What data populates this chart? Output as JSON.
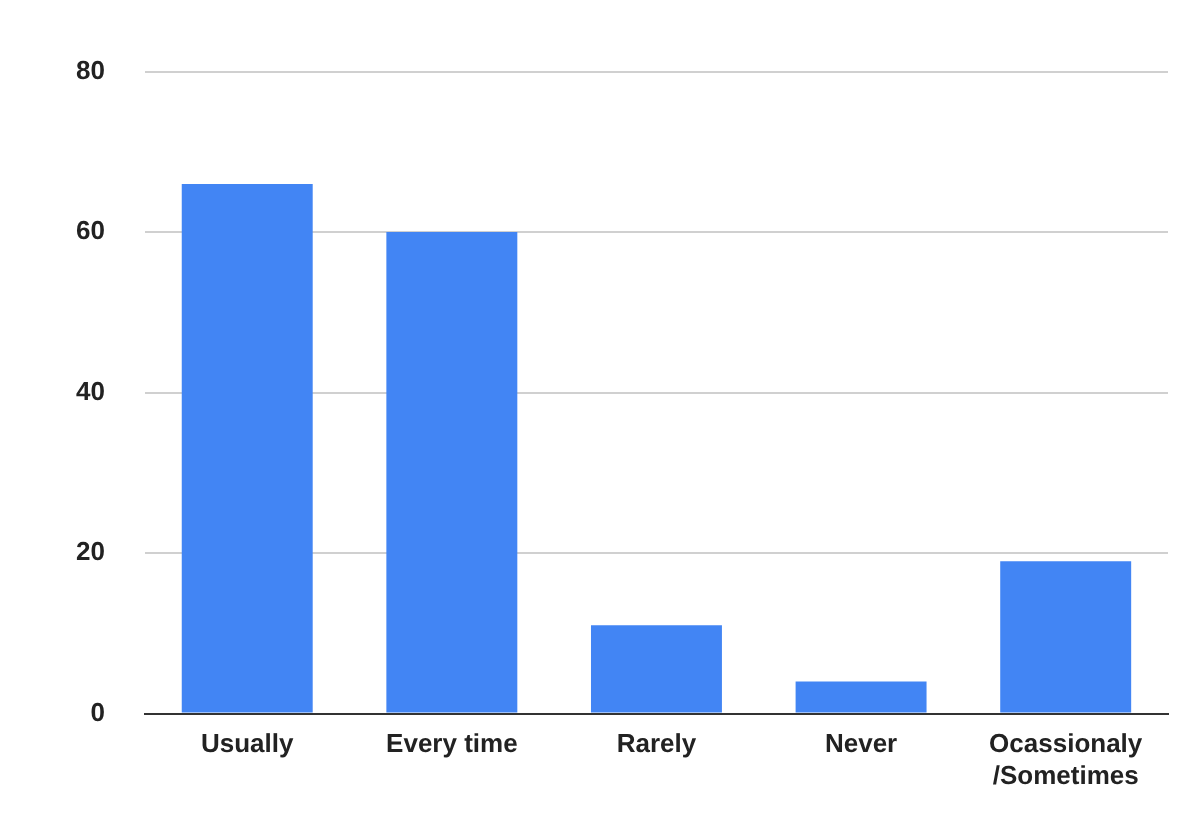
{
  "chart_data": {
    "type": "bar",
    "categories": [
      "Usually",
      "Every time",
      "Rarely",
      "Never",
      "Ocassionaly/Sometimes"
    ],
    "values": [
      66,
      60,
      11,
      4,
      19
    ],
    "color": "#4285f4",
    "ylim": [
      0,
      80
    ],
    "yticks": [
      0,
      20,
      40,
      60,
      80
    ],
    "grid": "y",
    "legend": false
  }
}
